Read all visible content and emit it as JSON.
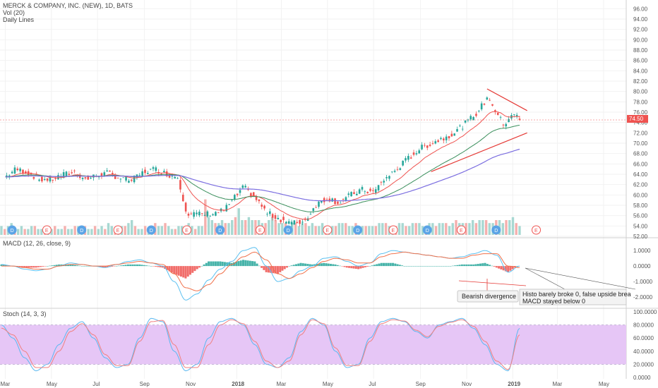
{
  "header": {
    "title": "MERCK & COMPANY, INC. (NEW), 1D, BATS",
    "vol_label": "Vol (20)",
    "daily_lines": "Daily Lines"
  },
  "macd_label": "MACD (12, 26, close, 9)",
  "stoch_label": "Stoch (14, 3, 3)",
  "price_badge": "74.50",
  "annotations": {
    "bearish": "Bearish divergence",
    "histo_line1": "Histo barely broke 0, false upside brea",
    "histo_line2": "MACD stayed below 0"
  },
  "colors": {
    "up": "#26a69a",
    "down": "#ef5350",
    "ema_fast": "#ef5350",
    "ema_mid": "#3a8f5c",
    "ema_slow": "#7b6ee0",
    "stoch_band": "#e6c6f6",
    "macd_line": "#5bc0f0",
    "signal_line": "#f0704a",
    "trend_line": "#e53935"
  },
  "chart_data": [
    {
      "type": "candlestick",
      "title": "MERCK & COMPANY, INC. (NEW), 1D, BATS",
      "ylim": [
        52,
        97
      ],
      "y_ticks": [
        "96.00",
        "94.00",
        "92.00",
        "90.00",
        "88.00",
        "86.00",
        "84.00",
        "82.00",
        "80.00",
        "78.00",
        "76.00",
        "74.00",
        "72.00",
        "70.00",
        "68.00",
        "66.00",
        "64.00",
        "62.00",
        "60.00",
        "58.00",
        "56.00",
        "54.00",
        "52.00"
      ],
      "x_ticks": [
        "Mar",
        "May",
        "Jul",
        "Sep",
        "Nov",
        "2018",
        "Mar",
        "May",
        "Jul",
        "Sep",
        "Nov",
        "2019",
        "Mar",
        "May"
      ],
      "last_price": 74.5,
      "close_path": [
        [
          "2017-03-01",
          63.5
        ],
        [
          "2017-03-15",
          65.0
        ],
        [
          "2017-04-01",
          64.3
        ],
        [
          "2017-04-15",
          63.0
        ],
        [
          "2017-05-01",
          63.0
        ],
        [
          "2017-05-15",
          63.8
        ],
        [
          "2017-06-01",
          64.5
        ],
        [
          "2017-06-15",
          63.0
        ],
        [
          "2017-07-01",
          63.8
        ],
        [
          "2017-07-15",
          64.2
        ],
        [
          "2017-08-01",
          63.2
        ],
        [
          "2017-08-15",
          62.8
        ],
        [
          "2017-09-01",
          64.5
        ],
        [
          "2017-09-15",
          65.0
        ],
        [
          "2017-10-01",
          64.0
        ],
        [
          "2017-10-15",
          63.5
        ],
        [
          "2017-10-27",
          56.5
        ],
        [
          "2017-11-15",
          56.2
        ],
        [
          "2017-12-01",
          56.5
        ],
        [
          "2017-12-15",
          57.0
        ],
        [
          "2018-01-10",
          61.5
        ],
        [
          "2018-01-25",
          59.5
        ],
        [
          "2018-02-10",
          56.5
        ],
        [
          "2018-02-25",
          55.5
        ],
        [
          "2018-03-15",
          54.5
        ],
        [
          "2018-04-01",
          55.0
        ],
        [
          "2018-04-15",
          58.0
        ],
        [
          "2018-05-01",
          59.5
        ],
        [
          "2018-05-15",
          58.5
        ],
        [
          "2018-06-01",
          60.0
        ],
        [
          "2018-06-15",
          61.0
        ],
        [
          "2018-07-01",
          60.5
        ],
        [
          "2018-07-15",
          63.0
        ],
        [
          "2018-08-01",
          65.0
        ],
        [
          "2018-08-15",
          67.0
        ],
        [
          "2018-09-01",
          69.0
        ],
        [
          "2018-09-15",
          70.0
        ],
        [
          "2018-10-01",
          71.0
        ],
        [
          "2018-10-15",
          72.0
        ],
        [
          "2018-11-01",
          74.0
        ],
        [
          "2018-11-15",
          76.0
        ],
        [
          "2018-11-30",
          79.0
        ],
        [
          "2018-12-10",
          76.0
        ],
        [
          "2018-12-20",
          73.5
        ],
        [
          "2019-01-01",
          76.0
        ],
        [
          "2019-01-10",
          74.5
        ]
      ],
      "volume_bars": [
        3,
        2,
        3,
        4,
        2,
        2,
        3,
        2,
        2,
        3,
        3,
        2,
        2,
        2,
        3,
        2,
        3,
        2,
        2,
        3,
        2,
        2,
        3,
        3,
        2,
        3,
        2,
        2,
        3,
        2,
        3,
        2,
        4,
        3,
        2,
        2,
        3,
        3,
        4,
        5,
        3,
        2,
        2,
        3,
        2,
        3,
        4,
        3,
        3,
        4,
        3,
        2,
        2,
        3,
        3,
        2,
        4,
        3,
        2,
        3,
        3,
        12,
        6,
        5,
        4,
        4,
        5,
        4,
        4,
        5,
        6,
        9,
        5,
        5,
        6,
        5,
        5,
        5,
        4,
        4,
        5,
        6,
        5,
        4,
        4,
        4,
        3,
        4,
        4,
        3,
        4,
        4,
        3,
        4,
        3,
        3,
        4,
        3,
        3,
        3,
        3,
        4,
        4,
        4,
        3,
        3,
        4,
        3,
        3,
        3,
        3,
        3,
        3,
        4,
        4,
        4,
        3,
        3,
        3,
        4,
        4,
        3,
        3,
        4,
        4,
        4,
        3,
        3,
        4,
        4,
        3,
        4,
        4,
        4,
        3,
        4,
        5,
        4,
        4,
        4,
        4,
        5,
        4,
        5,
        5,
        5,
        4,
        4,
        5,
        5,
        4,
        5,
        5,
        6,
        4,
        3
      ]
    },
    {
      "type": "line",
      "title": "MACD (12, 26, close, 9)",
      "ylim": [
        -2.5,
        1.6
      ],
      "y_ticks": [
        "1.0000",
        "0.0000",
        "-1.0000",
        "-2.0000"
      ],
      "series": [
        {
          "values": [
            0.1,
            0.0,
            -0.2,
            -0.3,
            -0.2,
            0.0,
            0.2,
            0.1,
            0.0,
            -0.1,
            0.1,
            0.3,
            0.4,
            0.2,
            0.0,
            -1.0,
            -2.2,
            -1.8,
            -0.9,
            -0.2,
            0.3,
            1.0,
            1.2,
            0.0,
            -1.0,
            -0.8,
            -0.3,
            0.0,
            0.5,
            0.6,
            0.3,
            0.0,
            0.2,
            0.8,
            1.0,
            0.9,
            0.8,
            0.7,
            0.6,
            0.5,
            0.6,
            0.8,
            1.0,
            0.7,
            -0.4,
            0.0
          ]
        },
        {
          "values": [
            0.0,
            0.0,
            -0.1,
            -0.2,
            -0.2,
            0.0,
            0.1,
            0.1,
            0.0,
            0.0,
            0.1,
            0.2,
            0.3,
            0.2,
            0.1,
            -0.5,
            -1.4,
            -1.6,
            -1.2,
            -0.5,
            0.1,
            0.6,
            0.9,
            0.4,
            -0.5,
            -0.8,
            -0.5,
            -0.1,
            0.3,
            0.5,
            0.4,
            0.2,
            0.2,
            0.6,
            0.8,
            0.9,
            0.8,
            0.7,
            0.6,
            0.5,
            0.5,
            0.7,
            0.8,
            0.8,
            0.0,
            -0.1
          ]
        }
      ],
      "histogram": [
        0.1,
        0.0,
        -0.1,
        -0.1,
        0.0,
        0.1,
        0.1,
        0.0,
        0.0,
        -0.1,
        0.0,
        0.1,
        0.1,
        0.0,
        -0.1,
        -0.5,
        -0.8,
        -0.2,
        0.3,
        0.3,
        0.2,
        0.4,
        0.3,
        -0.4,
        -0.5,
        0.0,
        0.2,
        0.1,
        0.2,
        0.1,
        -0.1,
        -0.2,
        0.0,
        0.2,
        0.2,
        0.0,
        0.0,
        0.0,
        0.0,
        0.0,
        0.1,
        0.1,
        0.2,
        -0.1,
        -0.4,
        0.1
      ]
    },
    {
      "type": "line",
      "title": "Stoch (14, 3, 3)",
      "ylim": [
        0,
        100
      ],
      "y_ticks": [
        "100.0000",
        "80.0000",
        "60.0000",
        "40.0000",
        "20.0000",
        "0.0000"
      ],
      "band": [
        20,
        80
      ],
      "series": [
        {
          "values": [
            80,
            60,
            30,
            10,
            20,
            50,
            75,
            85,
            60,
            30,
            15,
            20,
            60,
            90,
            85,
            40,
            10,
            20,
            60,
            85,
            90,
            80,
            50,
            20,
            15,
            30,
            70,
            90,
            80,
            40,
            15,
            20,
            60,
            85,
            90,
            85,
            70,
            60,
            80,
            85,
            90,
            75,
            50,
            20,
            10,
            75
          ]
        },
        {
          "values": [
            75,
            65,
            40,
            15,
            15,
            40,
            70,
            82,
            65,
            35,
            18,
            18,
            55,
            85,
            87,
            50,
            15,
            15,
            50,
            80,
            88,
            82,
            55,
            25,
            15,
            25,
            65,
            88,
            82,
            45,
            18,
            18,
            55,
            82,
            88,
            86,
            72,
            62,
            78,
            84,
            88,
            78,
            55,
            25,
            12,
            65
          ]
        }
      ]
    }
  ]
}
